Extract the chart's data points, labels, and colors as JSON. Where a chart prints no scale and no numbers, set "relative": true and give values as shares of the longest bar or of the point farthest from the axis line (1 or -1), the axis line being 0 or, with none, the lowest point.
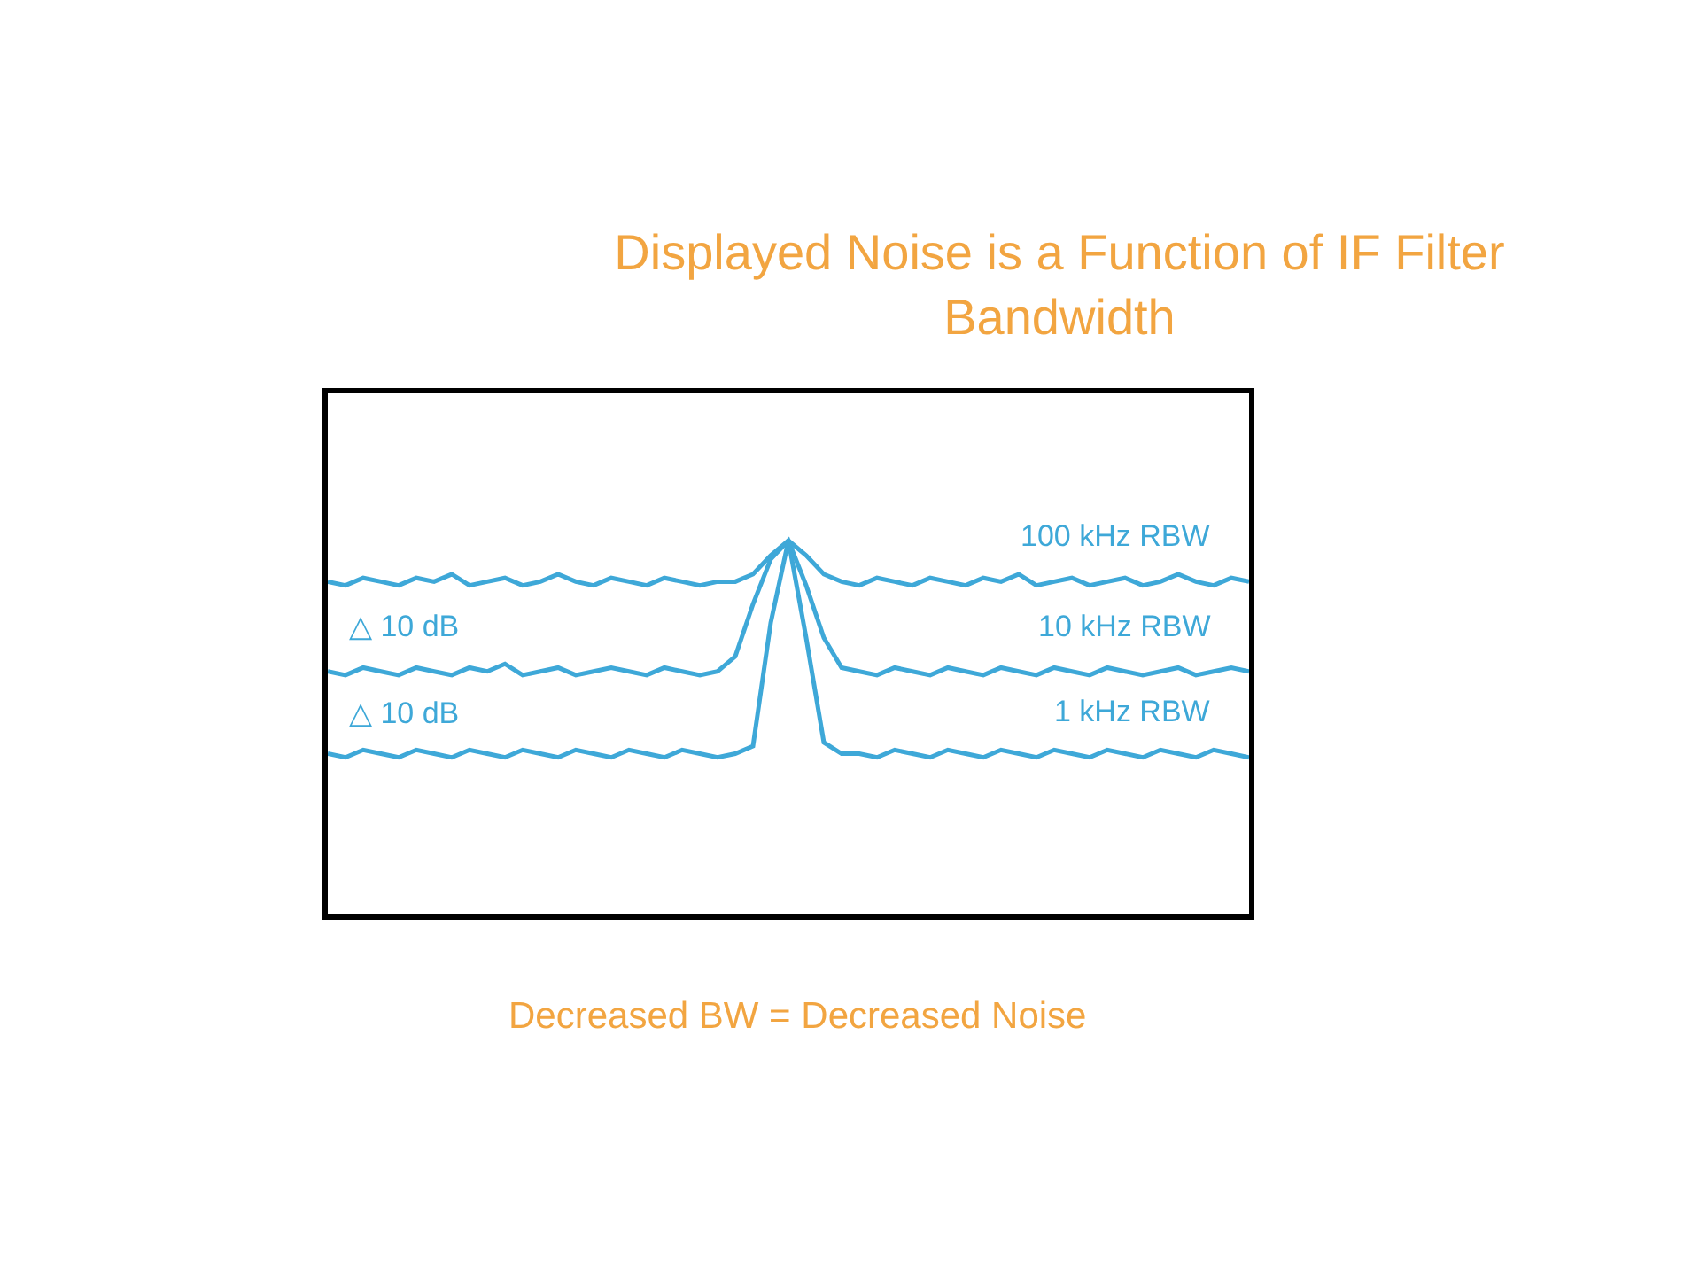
{
  "chart_data": {
    "type": "line",
    "relative": true,
    "title": "Displayed Noise is a Function of IF Filter Bandwidth",
    "categories": [
      null,
      null,
      null,
      null,
      null,
      null,
      null,
      null,
      null,
      null,
      null,
      null,
      null,
      null,
      null,
      null,
      null,
      null,
      null,
      null,
      null,
      null,
      null,
      null,
      null,
      null,
      null,
      null,
      null,
      null,
      null,
      null,
      null,
      null,
      null,
      null,
      null,
      null,
      null,
      null,
      null,
      null,
      null,
      null,
      null,
      null,
      null,
      null,
      null,
      null,
      null,
      null,
      null
    ],
    "series": [
      {
        "name": "100 kHz RBW",
        "color": "#3ea8d8",
        "values": [
          0.89,
          0.88,
          0.9,
          0.89,
          0.88,
          0.9,
          0.89,
          0.91,
          0.88,
          0.89,
          0.9,
          0.88,
          0.89,
          0.91,
          0.89,
          0.88,
          0.9,
          0.89,
          0.88,
          0.9,
          0.89,
          0.88,
          0.89,
          0.89,
          0.91,
          0.96,
          1.0,
          0.96,
          0.91,
          0.89,
          0.88,
          0.9,
          0.89,
          0.88,
          0.9,
          0.89,
          0.88,
          0.9,
          0.89,
          0.91,
          0.88,
          0.89,
          0.9,
          0.88,
          0.89,
          0.9,
          0.88,
          0.89,
          0.91,
          0.89,
          0.88,
          0.9,
          0.89
        ]
      },
      {
        "name": "10 kHz RBW",
        "color": "#3ea8d8",
        "values": [
          0.65,
          0.64,
          0.66,
          0.65,
          0.64,
          0.66,
          0.65,
          0.64,
          0.66,
          0.65,
          0.67,
          0.64,
          0.65,
          0.66,
          0.64,
          0.65,
          0.66,
          0.65,
          0.64,
          0.66,
          0.65,
          0.64,
          0.65,
          0.69,
          0.83,
          0.95,
          1.0,
          0.88,
          0.74,
          0.66,
          0.65,
          0.64,
          0.66,
          0.65,
          0.64,
          0.66,
          0.65,
          0.64,
          0.66,
          0.65,
          0.64,
          0.66,
          0.65,
          0.64,
          0.66,
          0.65,
          0.64,
          0.65,
          0.66,
          0.64,
          0.65,
          0.66,
          0.65
        ]
      },
      {
        "name": "1 kHz RBW",
        "color": "#3ea8d8",
        "values": [
          0.43,
          0.42,
          0.44,
          0.43,
          0.42,
          0.44,
          0.43,
          0.42,
          0.44,
          0.43,
          0.42,
          0.44,
          0.43,
          0.42,
          0.44,
          0.43,
          0.42,
          0.44,
          0.43,
          0.42,
          0.44,
          0.43,
          0.42,
          0.43,
          0.45,
          0.78,
          1.0,
          0.74,
          0.46,
          0.43,
          0.43,
          0.42,
          0.44,
          0.43,
          0.42,
          0.44,
          0.43,
          0.42,
          0.44,
          0.43,
          0.42,
          0.44,
          0.43,
          0.42,
          0.44,
          0.43,
          0.42,
          0.44,
          0.43,
          0.42,
          0.44,
          0.43,
          0.42
        ]
      }
    ],
    "annotations": [
      "△ 10 dB",
      "△ 10 dB",
      "Decreased BW = Decreased Noise"
    ],
    "legend": false,
    "marker": "none",
    "line_style": "solid"
  }
}
